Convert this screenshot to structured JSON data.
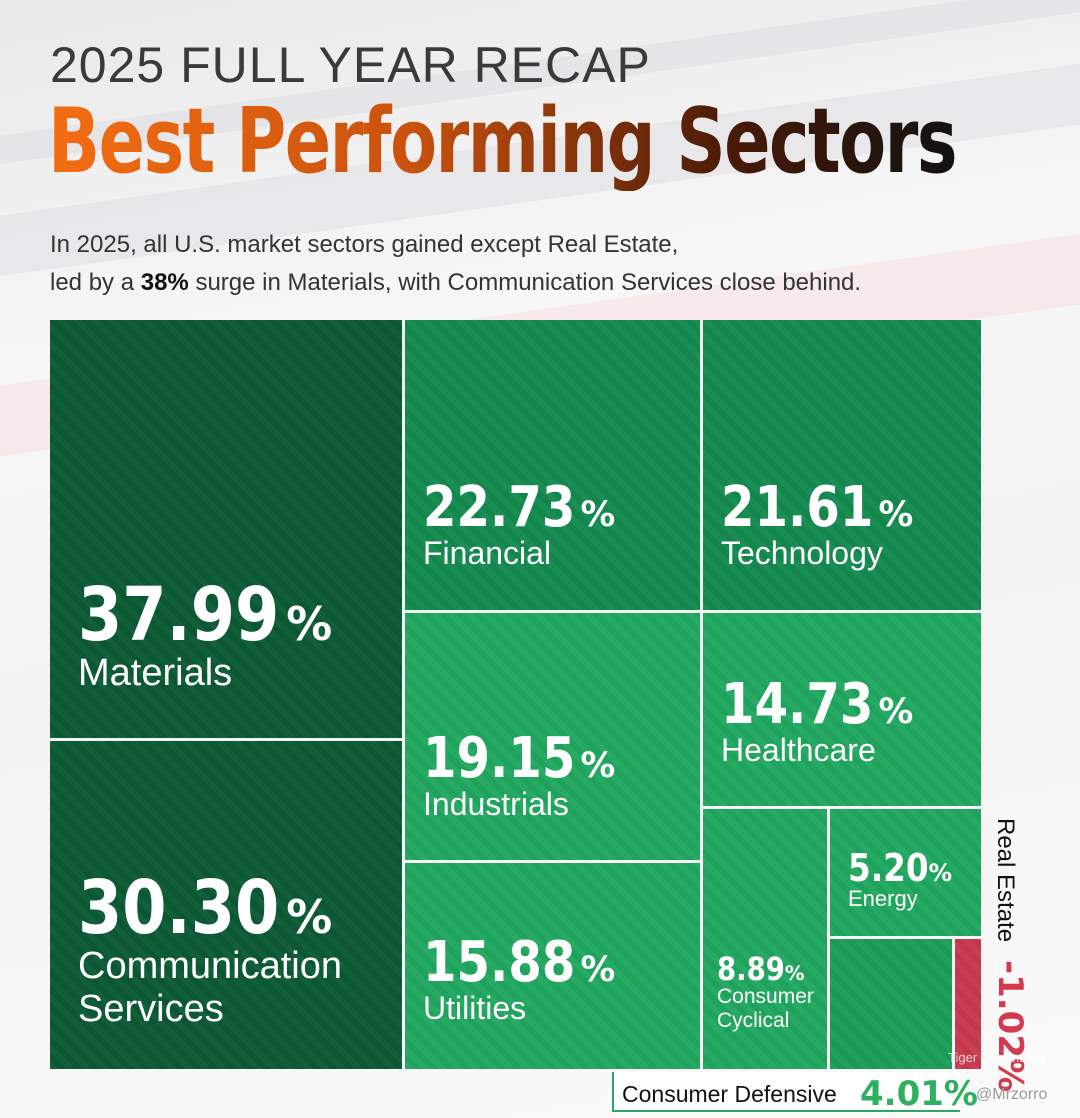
{
  "header": {
    "title_top": "2025 FULL YEAR RECAP",
    "title_main": "Best Performing Sectors",
    "subtitle_line1": "In 2025, all U.S. market sectors gained except Real Estate,",
    "subtitle_line2_pre": "led by a ",
    "subtitle_line2_bold": "38%",
    "subtitle_line2_post": " surge in Materials, with Communication Services close behind."
  },
  "colors": {
    "positive_dark": "#0b5a36",
    "positive_mid": "#138a4f",
    "positive_bright": "#20a85f",
    "negative": "#c8394c",
    "title_orange": "#f36d12"
  },
  "chart_data": {
    "type": "treemap",
    "title": "Best Performing Sectors",
    "unit": "%",
    "sectors": [
      {
        "name": "Materials",
        "label_lines": [
          "Materials"
        ],
        "value": 37.99,
        "display": "37.99"
      },
      {
        "name": "Communication Services",
        "label_lines": [
          "Communication",
          "Services"
        ],
        "value": 30.3,
        "display": "30.30"
      },
      {
        "name": "Financial",
        "label_lines": [
          "Financial"
        ],
        "value": 22.73,
        "display": "22.73"
      },
      {
        "name": "Technology",
        "label_lines": [
          "Technology"
        ],
        "value": 21.61,
        "display": "21.61"
      },
      {
        "name": "Industrials",
        "label_lines": [
          "Industrials"
        ],
        "value": 19.15,
        "display": "19.15"
      },
      {
        "name": "Utilities",
        "label_lines": [
          "Utilities"
        ],
        "value": 15.88,
        "display": "15.88"
      },
      {
        "name": "Healthcare",
        "label_lines": [
          "Healthcare"
        ],
        "value": 14.73,
        "display": "14.73"
      },
      {
        "name": "Consumer Cyclical",
        "label_lines": [
          "Consumer",
          "Cyclical"
        ],
        "value": 8.89,
        "display": "8.89"
      },
      {
        "name": "Energy",
        "label_lines": [
          "Energy"
        ],
        "value": 5.2,
        "display": "5.20"
      },
      {
        "name": "Consumer Defensive",
        "label_lines": [
          "Consumer Defensive"
        ],
        "value": 4.01,
        "display": "4.01"
      },
      {
        "name": "Real Estate",
        "label_lines": [
          "Real Estate"
        ],
        "value": -1.02,
        "display": "-1.02"
      }
    ]
  },
  "watermark": {
    "community": "Tiger Community",
    "handle": "@Mrzorro"
  }
}
